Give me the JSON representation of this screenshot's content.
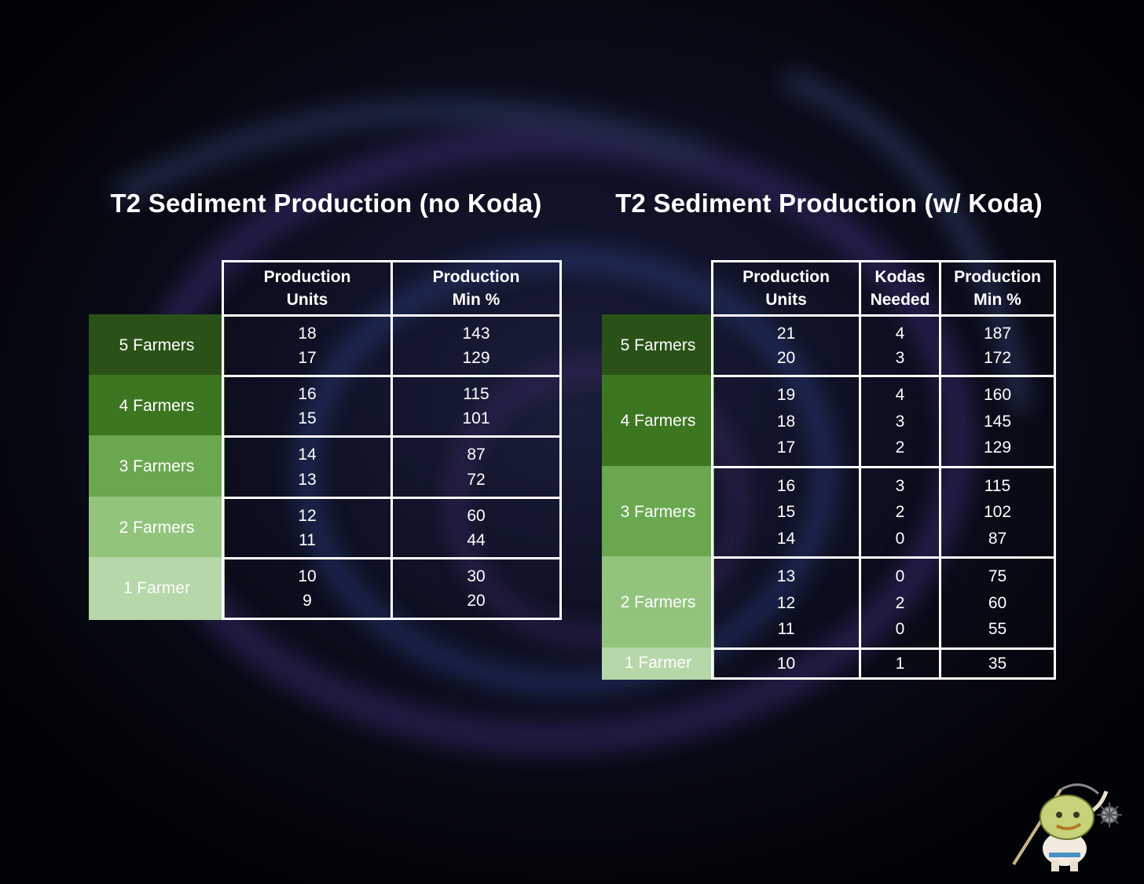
{
  "colors": {
    "band_5": "#2a5218",
    "band_4": "#3d7620",
    "band_3": "#6aa84f",
    "band_2": "#93c47d",
    "band_1": "#b6d7a8",
    "border": "#ffffff"
  },
  "left_table": {
    "title": "T2 Sediment Production (no Koda)",
    "headers": {
      "units_line1": "Production",
      "units_line2": "Units",
      "min_line1": "Production",
      "min_line2": "Min %"
    },
    "groups": [
      {
        "label": "5 Farmers",
        "rows": [
          {
            "units": "18",
            "min": "143"
          },
          {
            "units": "17",
            "min": "129"
          }
        ]
      },
      {
        "label": "4 Farmers",
        "rows": [
          {
            "units": "16",
            "min": "115"
          },
          {
            "units": "15",
            "min": "101"
          }
        ]
      },
      {
        "label": "3 Farmers",
        "rows": [
          {
            "units": "14",
            "min": "87"
          },
          {
            "units": "13",
            "min": "72"
          }
        ]
      },
      {
        "label": "2 Farmers",
        "rows": [
          {
            "units": "12",
            "min": "60"
          },
          {
            "units": "11",
            "min": "44"
          }
        ]
      },
      {
        "label": "1 Farmer",
        "rows": [
          {
            "units": "10",
            "min": "30"
          },
          {
            "units": "9",
            "min": "20"
          }
        ]
      }
    ]
  },
  "right_table": {
    "title": "T2 Sediment Production (w/ Koda)",
    "headers": {
      "units_line1": "Production",
      "units_line2": "Units",
      "kodas_line1": "Kodas",
      "kodas_line2": "Needed",
      "min_line1": "Production",
      "min_line2": "Min %"
    },
    "groups": [
      {
        "label": "5 Farmers",
        "rows": [
          {
            "units": "21",
            "kodas": "4",
            "min": "187"
          },
          {
            "units": "20",
            "kodas": "3",
            "min": "172"
          }
        ]
      },
      {
        "label": "4 Farmers",
        "rows": [
          {
            "units": "19",
            "kodas": "4",
            "min": "160"
          },
          {
            "units": "18",
            "kodas": "3",
            "min": "145"
          },
          {
            "units": "17",
            "kodas": "2",
            "min": "129"
          }
        ]
      },
      {
        "label": "3 Farmers",
        "rows": [
          {
            "units": "16",
            "kodas": "3",
            "min": "115"
          },
          {
            "units": "15",
            "kodas": "2",
            "min": "102"
          },
          {
            "units": "14",
            "kodas": "0",
            "min": "87"
          }
        ]
      },
      {
        "label": "2 Farmers",
        "rows": [
          {
            "units": "13",
            "kodas": "0",
            "min": "75"
          },
          {
            "units": "12",
            "kodas": "2",
            "min": "60"
          },
          {
            "units": "11",
            "kodas": "0",
            "min": "55"
          }
        ]
      },
      {
        "label": "1 Farmer",
        "rows": [
          {
            "units": "10",
            "kodas": "1",
            "min": "35"
          }
        ]
      }
    ]
  },
  "mascot": {
    "icon": "horned-warrior-mascot-icon"
  }
}
